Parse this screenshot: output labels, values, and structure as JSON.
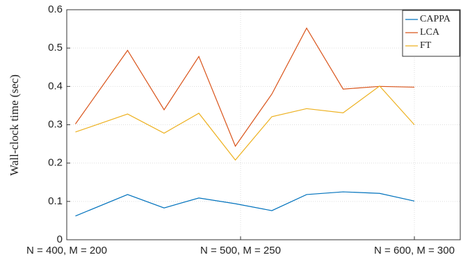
{
  "chart_data": {
    "type": "line",
    "ylabel": "Wall-clock time (sec)",
    "x": [
      405,
      435,
      456,
      476,
      497,
      518,
      538,
      559,
      580,
      600
    ],
    "xlim": [
      400,
      626.4
    ],
    "xticks": [
      {
        "value": 400,
        "label": "N = 400, M = 200"
      },
      {
        "value": 500,
        "label": "N = 500, M = 250"
      },
      {
        "value": 600,
        "label": "N = 600, M = 300"
      }
    ],
    "ylim": [
      0,
      0.6
    ],
    "yticks": [
      0,
      0.1,
      0.2,
      0.3,
      0.4,
      0.5,
      0.6
    ],
    "grid": true,
    "legend": "upper right",
    "series": [
      {
        "name": "CAPPA",
        "color": "#0072bd",
        "values": [
          0.062,
          0.118,
          0.083,
          0.109,
          0.094,
          0.076,
          0.118,
          0.125,
          0.121,
          0.101
        ]
      },
      {
        "name": "LCA",
        "color": "#d95319",
        "values": [
          0.302,
          0.494,
          0.339,
          0.478,
          0.244,
          0.38,
          0.552,
          0.393,
          0.4,
          0.398
        ]
      },
      {
        "name": "FT",
        "color": "#edb120",
        "values": [
          0.281,
          0.328,
          0.278,
          0.33,
          0.208,
          0.321,
          0.342,
          0.331,
          0.401,
          0.3
        ]
      }
    ]
  }
}
